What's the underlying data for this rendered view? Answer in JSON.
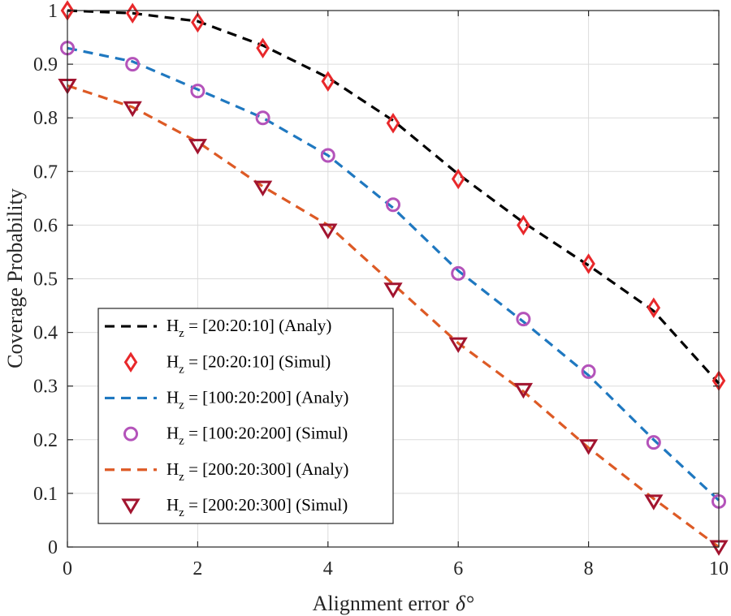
{
  "chart_data": {
    "type": "line",
    "title": "",
    "xlabel": "Alignment error",
    "xlabel_symbol": "δ°",
    "ylabel": "Coverage Probability",
    "xlim": [
      0,
      10
    ],
    "ylim": [
      0,
      1
    ],
    "xticks": [
      0,
      2,
      4,
      6,
      8,
      10
    ],
    "yticks": [
      0,
      0.1,
      0.2,
      0.3,
      0.4,
      0.5,
      0.6,
      0.7,
      0.8,
      0.9,
      1
    ],
    "grid": true,
    "legend_position": "bottom-left",
    "x": [
      0,
      1,
      2,
      3,
      4,
      5,
      6,
      7,
      8,
      9,
      10
    ],
    "series": [
      {
        "name": "H_z = [20:20:10] (Analy)",
        "name_prefix": "H",
        "name_sub": "z",
        "name_rest": " = [20:20:10] (Analy)",
        "kind": "line",
        "color": "#000000",
        "values": [
          1.0,
          0.995,
          0.98,
          0.935,
          0.875,
          0.795,
          0.695,
          0.605,
          0.525,
          0.44,
          0.305
        ]
      },
      {
        "name": "H_z = [20:20:10] (Simul)",
        "name_prefix": "H",
        "name_sub": "z",
        "name_rest": " = [20:20:10] (Simul)",
        "kind": "marker",
        "marker": "diamond",
        "color": "#e8282b",
        "values": [
          1.0,
          0.995,
          0.978,
          0.93,
          0.868,
          0.79,
          0.686,
          0.6,
          0.528,
          0.446,
          0.31
        ]
      },
      {
        "name": "H_z = [100:20:200] (Analy)",
        "name_prefix": "H",
        "name_sub": "z",
        "name_rest": " = [100:20:200] (Analy)",
        "kind": "line",
        "color": "#1f78c0",
        "values": [
          0.93,
          0.905,
          0.853,
          0.8,
          0.73,
          0.632,
          0.515,
          0.42,
          0.32,
          0.2,
          0.087
        ]
      },
      {
        "name": "H_z = [100:20:200] (Simul)",
        "name_prefix": "H",
        "name_sub": "z",
        "name_rest": " = [100:20:200] (Simul)",
        "kind": "marker",
        "marker": "circle",
        "color": "#b453ba",
        "values": [
          0.93,
          0.9,
          0.85,
          0.8,
          0.73,
          0.638,
          0.51,
          0.425,
          0.327,
          0.195,
          0.085
        ]
      },
      {
        "name": "H_z = [200:20:300] (Analy)",
        "name_prefix": "H",
        "name_sub": "z",
        "name_rest": " = [200:20:300] (Analy)",
        "kind": "line",
        "color": "#dd5a25",
        "values": [
          0.86,
          0.82,
          0.755,
          0.672,
          0.6,
          0.49,
          0.38,
          0.29,
          0.185,
          0.09,
          0.0
        ]
      },
      {
        "name": "H_z = [200:20:300] (Simul)",
        "name_prefix": "H",
        "name_sub": "z",
        "name_rest": " = [200:20:300] (Simul)",
        "kind": "marker",
        "marker": "triangle-down",
        "color": "#a2142f",
        "values": [
          0.86,
          0.818,
          0.748,
          0.67,
          0.59,
          0.48,
          0.378,
          0.293,
          0.188,
          0.085,
          0.0
        ]
      }
    ]
  }
}
